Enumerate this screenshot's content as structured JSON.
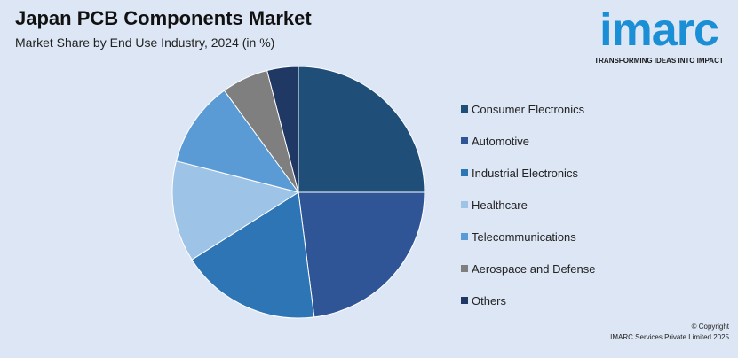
{
  "header": {
    "title": "Japan PCB Components Market",
    "subtitle": "Market Share by End Use Industry, 2024 (in %)"
  },
  "logo": {
    "word": "imarc",
    "tagline": "TRANSFORMING IDEAS INTO IMPACT"
  },
  "footer": {
    "copyright_line1": "© Copyright",
    "copyright_line2": "IMARC Services Private Limited 2025"
  },
  "chart_data": {
    "type": "pie",
    "title": "Japan PCB Components Market",
    "subtitle": "Market Share by End Use Industry, 2024 (in %)",
    "legend_position": "right",
    "slices": [
      {
        "label": "Consumer Electronics",
        "value": 25,
        "color": "#1f4e79"
      },
      {
        "label": "Automotive",
        "value": 23,
        "color": "#2f5597"
      },
      {
        "label": "Industrial Electronics",
        "value": 18,
        "color": "#2e75b6"
      },
      {
        "label": "Healthcare",
        "value": 13,
        "color": "#9dc3e6"
      },
      {
        "label": "Telecommunications",
        "value": 11,
        "color": "#5b9bd5"
      },
      {
        "label": "Aerospace and Defense",
        "value": 6,
        "color": "#7f7f7f"
      },
      {
        "label": "Others",
        "value": 4,
        "color": "#203864"
      }
    ]
  }
}
